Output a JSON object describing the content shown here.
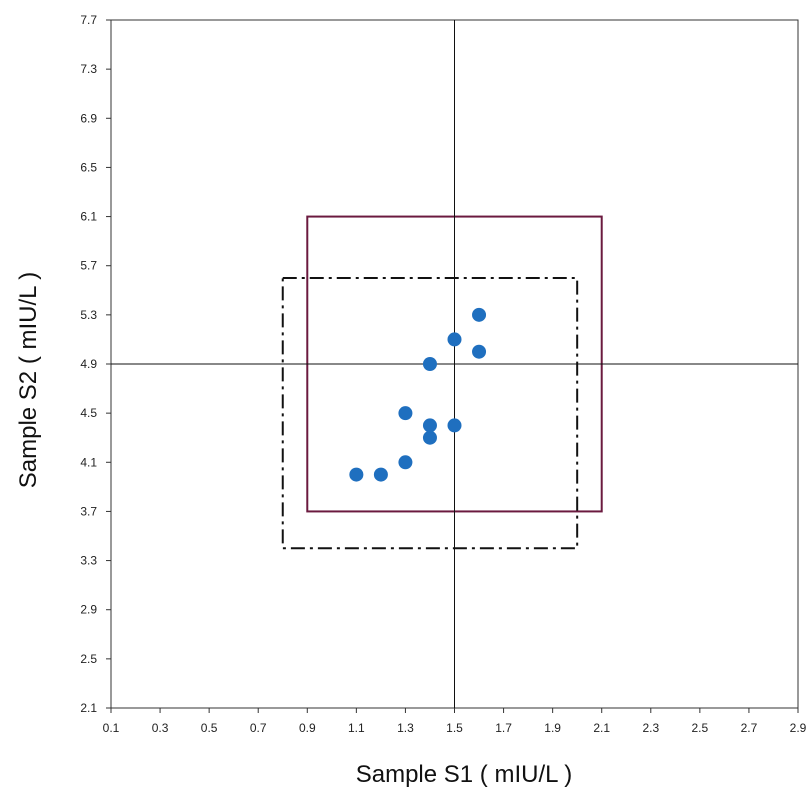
{
  "chart_data": {
    "type": "scatter",
    "title": "",
    "xlabel": "Sample S1 ( mIU/L )",
    "ylabel": "Sample S2 ( mIU/L )",
    "xlim": [
      0.1,
      2.9
    ],
    "ylim": [
      2.1,
      7.7
    ],
    "x_ticks": [
      "0.1",
      "0.3",
      "0.5",
      "0.7",
      "0.9",
      "1.1",
      "1.3",
      "1.5",
      "1.7",
      "1.9",
      "2.1",
      "2.3",
      "2.5",
      "2.7",
      "2.9"
    ],
    "y_ticks": [
      "2.1",
      "2.5",
      "2.9",
      "3.3",
      "3.7",
      "4.1",
      "4.5",
      "4.9",
      "5.3",
      "5.7",
      "6.1",
      "6.5",
      "6.9",
      "7.3",
      "7.7"
    ],
    "grid": false,
    "legend": "none",
    "points": [
      {
        "x": 1.1,
        "y": 4.0
      },
      {
        "x": 1.2,
        "y": 4.0
      },
      {
        "x": 1.3,
        "y": 4.1
      },
      {
        "x": 1.3,
        "y": 4.5
      },
      {
        "x": 1.4,
        "y": 4.3
      },
      {
        "x": 1.4,
        "y": 4.4
      },
      {
        "x": 1.4,
        "y": 4.9
      },
      {
        "x": 1.5,
        "y": 4.4
      },
      {
        "x": 1.5,
        "y": 5.1
      },
      {
        "x": 1.6,
        "y": 5.0
      },
      {
        "x": 1.6,
        "y": 5.3
      }
    ],
    "reference_lines": [
      {
        "orientation": "vertical",
        "value": 1.5
      },
      {
        "orientation": "horizontal",
        "value": 4.9
      }
    ],
    "regions": [
      {
        "style": "solid",
        "color": "#6b1a3f",
        "x": [
          0.9,
          2.1
        ],
        "y": [
          3.7,
          6.1
        ]
      },
      {
        "style": "dash-dot",
        "color": "#111111",
        "x": [
          0.8,
          2.0
        ],
        "y": [
          3.4,
          5.6
        ]
      }
    ],
    "marker_color": "#1f6fbf"
  }
}
